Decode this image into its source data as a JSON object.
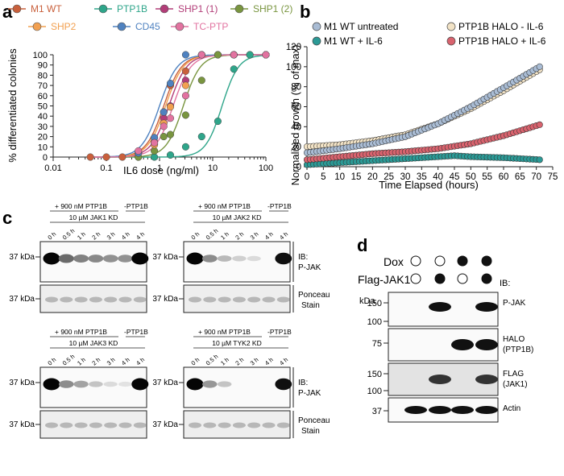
{
  "panels": {
    "a": {
      "letter": "a",
      "chart_data": {
        "type": "scatter",
        "x_scale": "log",
        "xlabel": "IL6 dose (ng/ml)",
        "ylabel": "% differentiated colonies",
        "xlim": [
          0.01,
          100
        ],
        "ylim": [
          0,
          100
        ],
        "xticks": [
          "0.01",
          "0.1",
          "1",
          "10",
          "100"
        ],
        "yticks": [
          "0",
          "10",
          "20",
          "30",
          "40",
          "50",
          "60",
          "70",
          "80",
          "90",
          "100"
        ],
        "series": [
          {
            "name": "M1 WT",
            "color": "#c9603c",
            "ec50": 1.2,
            "hill": 2.6,
            "x": [
              0.05,
              0.1,
              0.2,
              0.4,
              0.8,
              1.2,
              1.6,
              3.1,
              6.2,
              12.5,
              25,
              50,
              100
            ],
            "y": [
              0,
              0,
              0,
              4,
              15,
              44,
              70,
              84,
              100,
              100,
              100,
              100,
              100
            ]
          },
          {
            "name": "PTP1B",
            "color": "#2ea58a",
            "ec50": 15,
            "hill": 2.8,
            "x": [
              0.4,
              0.8,
              1.6,
              3.1,
              6.2,
              12.5,
              25,
              50,
              100
            ],
            "y": [
              0,
              0,
              2,
              10,
              20,
              35,
              86,
              100,
              100
            ]
          },
          {
            "name": "SHP1 (1)",
            "color": "#b23d78",
            "ec50": 1.5,
            "hill": 2.6,
            "x": [
              0.4,
              0.8,
              1.2,
              1.6,
              3.1,
              6.2,
              12.5,
              25,
              100
            ],
            "y": [
              4,
              13,
              38,
              50,
              75,
              100,
              100,
              100,
              100
            ]
          },
          {
            "name": "SHP1 (2)",
            "color": "#79953f",
            "ec50": 2.8,
            "hill": 2.7,
            "x": [
              0.4,
              0.8,
              1.2,
              1.6,
              3.1,
              6.2,
              12.5,
              25,
              100
            ],
            "y": [
              0,
              6,
              20,
              22,
              41,
              75,
              100,
              100,
              100
            ]
          },
          {
            "name": "SHP2",
            "color": "#f2a050",
            "ec50": 1.3,
            "hill": 2.6,
            "x": [
              0.4,
              0.8,
              1.2,
              1.6,
              3.1,
              6.2,
              25,
              100
            ],
            "y": [
              4,
              12,
              33,
              49,
              70,
              100,
              100,
              100
            ]
          },
          {
            "name": "CD45",
            "color": "#4f82c0",
            "ec50": 1.0,
            "hill": 2.6,
            "x": [
              0.4,
              0.8,
              1.2,
              1.6,
              3.1,
              6.2,
              25,
              100
            ],
            "y": [
              4,
              19,
              44,
              72,
              100,
              100,
              100,
              100
            ]
          },
          {
            "name": "TC-PTP",
            "color": "#e273a0",
            "ec50": 1.8,
            "hill": 2.6,
            "x": [
              0.4,
              0.8,
              1.2,
              1.6,
              3.1,
              6.2,
              25,
              100
            ],
            "y": [
              6,
              14,
              30,
              38,
              60,
              100,
              100,
              100
            ]
          }
        ]
      }
    },
    "b": {
      "letter": "b",
      "chart_data": {
        "type": "scatter",
        "xlabel": "Time Elapsed (hours)",
        "ylabel": "Normalised growth (% of max)",
        "xlim": [
          0,
          75
        ],
        "ylim": [
          0,
          120
        ],
        "xticks": [
          "0",
          "5",
          "10",
          "15",
          "20",
          "25",
          "30",
          "35",
          "40",
          "45",
          "50",
          "55",
          "60",
          "65",
          "70",
          "75"
        ],
        "yticks": [
          "0",
          "20",
          "40",
          "60",
          "80",
          "100",
          "120"
        ],
        "series": [
          {
            "name": "M1 WT untreated",
            "color": "#a9bcd4",
            "x": [
              0,
              10,
              20,
              30,
              40,
              50,
              60,
              71
            ],
            "y": [
              14,
              18,
              23,
              30,
              43,
              60,
              79,
              100
            ]
          },
          {
            "name": "PTP1B HALO - IL-6",
            "color": "#f2e3c6",
            "x": [
              0,
              10,
              20,
              30,
              40,
              50,
              60,
              71
            ],
            "y": [
              20,
              22,
              26,
              32,
              43,
              58,
              76,
              97
            ]
          },
          {
            "name": "M1 WT + IL-6",
            "color": "#2b9a96",
            "x": [
              0,
              10,
              20,
              30,
              40,
              45,
              50,
              60,
              71
            ],
            "y": [
              2,
              4,
              6,
              8,
              10,
              11,
              10,
              9,
              7
            ]
          },
          {
            "name": "PTP1B HALO + IL-6",
            "color": "#d9636e",
            "x": [
              0,
              10,
              20,
              30,
              40,
              50,
              60,
              71
            ],
            "y": [
              7,
              10,
              13,
              15,
              18,
              23,
              31,
              42
            ]
          }
        ]
      }
    },
    "c": {
      "letter": "c",
      "blots": [
        {
          "top_label": "+ 900 nM PTP1B",
          "minus_label": "-PTP1B",
          "kd_label": "10 µM JAK1 KD",
          "lanes": [
            "0 h",
            "0.5 h",
            "1 h",
            "2 h",
            "3 h",
            "4 h",
            "4 h"
          ],
          "kda": "37 kDa",
          "kda2": "37 kDa",
          "intensity": [
            1.0,
            0.55,
            0.45,
            0.42,
            0.38,
            0.38,
            1.0
          ]
        },
        {
          "top_label": "+ 900 nM PTP1B",
          "minus_label": "-PTP1B",
          "kd_label": "10 µM JAK2 KD",
          "lanes": [
            "0 h",
            "0.5 h",
            "1 h",
            "2 h",
            "3 h",
            "4 h",
            "4 h"
          ],
          "kda": "37 kDa",
          "kda2": "37 kDa",
          "ib_label": "IB:",
          "ib_target": "P-JAK",
          "ponceau1": "Ponceau",
          "ponceau2": "Stain",
          "intensity": [
            1.0,
            0.4,
            0.2,
            0.1,
            0.05,
            0.0,
            0.95
          ]
        },
        {
          "top_label": "+ 900 nM PTP1B",
          "minus_label": "-PTP1B",
          "kd_label": "10 µM JAK3 KD",
          "lanes": [
            "0 h",
            "0.5 h",
            "1 h",
            "2 h",
            "3 h",
            "4 h",
            "4 h"
          ],
          "kda": "37 kDa",
          "kda2": "37 kDa",
          "intensity": [
            1.0,
            0.4,
            0.3,
            0.15,
            0.05,
            0.02,
            1.0
          ]
        },
        {
          "top_label": "+ 900 nM PTP1B",
          "minus_label": "-PTP1B",
          "kd_label": "10 µM TYK2 KD",
          "lanes": [
            "0 h",
            "0.5 h",
            "1 h",
            "2 h",
            "3 h",
            "4 h",
            "4 h"
          ],
          "kda": "37 kDa",
          "kda2": "37 kDa",
          "ib_label": "IB:",
          "ib_target": "P-JAK",
          "ponceau1": "Ponceau",
          "ponceau2": "Stain",
          "intensity": [
            1.0,
            0.35,
            0.15,
            0.0,
            0.0,
            0.0,
            0.95
          ]
        }
      ]
    },
    "d": {
      "letter": "d",
      "dox_label": "Dox",
      "flag_label": "Flag-JAK1",
      "ib_label": "IB:",
      "kda_label": "kDa",
      "dox_filled": [
        false,
        false,
        true,
        true
      ],
      "flag_filled": [
        false,
        true,
        false,
        true
      ],
      "markers": [
        "150",
        "100",
        "75",
        "150",
        "100",
        "37"
      ],
      "rows": [
        {
          "target": "P-JAK",
          "bands": [
            0,
            1,
            0,
            1
          ]
        },
        {
          "target": "HALO",
          "target2": "(PTP1B)",
          "bands": [
            0,
            0,
            1,
            1
          ]
        },
        {
          "target": "FLAG",
          "target2": "(JAK1)",
          "bands": [
            0,
            1,
            0,
            1
          ]
        },
        {
          "target": "Actin",
          "bands": [
            1,
            1,
            1,
            1
          ]
        }
      ]
    }
  }
}
